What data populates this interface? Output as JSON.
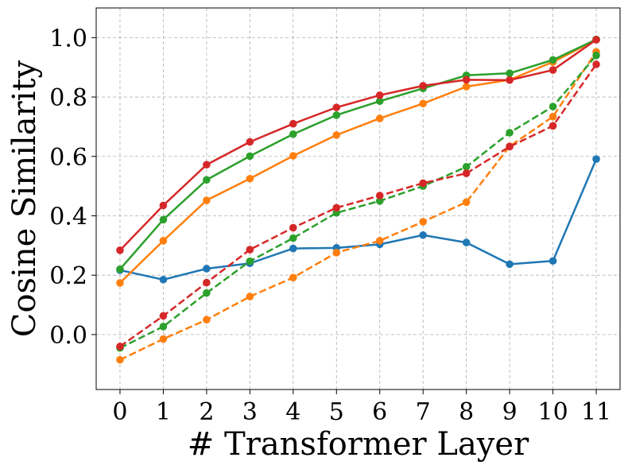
{
  "chart_data": {
    "type": "line",
    "xlabel": "# Transformer Layer",
    "ylabel": "Cosine Similarity",
    "x": [
      0,
      1,
      2,
      3,
      4,
      5,
      6,
      7,
      8,
      9,
      10,
      11
    ],
    "xticks": [
      "0",
      "1",
      "2",
      "3",
      "4",
      "5",
      "6",
      "7",
      "8",
      "9",
      "10",
      "11"
    ],
    "yticks": [
      0.0,
      0.2,
      0.4,
      0.6,
      0.8,
      1.0
    ],
    "ytick_labels": [
      "0.0",
      "0.2",
      "0.4",
      "0.6",
      "0.8",
      "1.0"
    ],
    "xlim": [
      -0.55,
      11.55
    ],
    "ylim": [
      -0.185,
      1.1
    ],
    "grid": true,
    "series": [
      {
        "color": "#1f77b4",
        "dashed": false,
        "values": [
          0.217,
          0.185,
          0.222,
          0.24,
          0.29,
          0.292,
          0.304,
          0.335,
          0.31,
          0.237,
          0.248,
          0.591
        ]
      },
      {
        "color": "#ff7f0e",
        "dashed": false,
        "values": [
          0.174,
          0.316,
          0.452,
          0.525,
          0.602,
          0.672,
          0.728,
          0.778,
          0.835,
          0.858,
          0.918,
          0.993
        ]
      },
      {
        "color": "#2ca02c",
        "dashed": false,
        "values": [
          0.22,
          0.387,
          0.521,
          0.601,
          0.675,
          0.739,
          0.786,
          0.829,
          0.873,
          0.88,
          0.925,
          0.994
        ]
      },
      {
        "color": "#d62728",
        "dashed": false,
        "values": [
          0.284,
          0.435,
          0.572,
          0.649,
          0.71,
          0.765,
          0.806,
          0.838,
          0.858,
          0.857,
          0.891,
          0.993
        ]
      },
      {
        "color": "#ff7f0e",
        "dashed": true,
        "values": [
          -0.085,
          -0.015,
          0.05,
          0.128,
          0.192,
          0.276,
          0.316,
          0.38,
          0.446,
          0.634,
          0.734,
          0.952
        ]
      },
      {
        "color": "#2ca02c",
        "dashed": true,
        "values": [
          -0.045,
          0.027,
          0.14,
          0.247,
          0.325,
          0.41,
          0.45,
          0.5,
          0.565,
          0.68,
          0.768,
          0.94
        ]
      },
      {
        "color": "#d62728",
        "dashed": true,
        "values": [
          -0.04,
          0.063,
          0.175,
          0.286,
          0.36,
          0.427,
          0.468,
          0.51,
          0.543,
          0.633,
          0.703,
          0.91
        ]
      }
    ]
  }
}
